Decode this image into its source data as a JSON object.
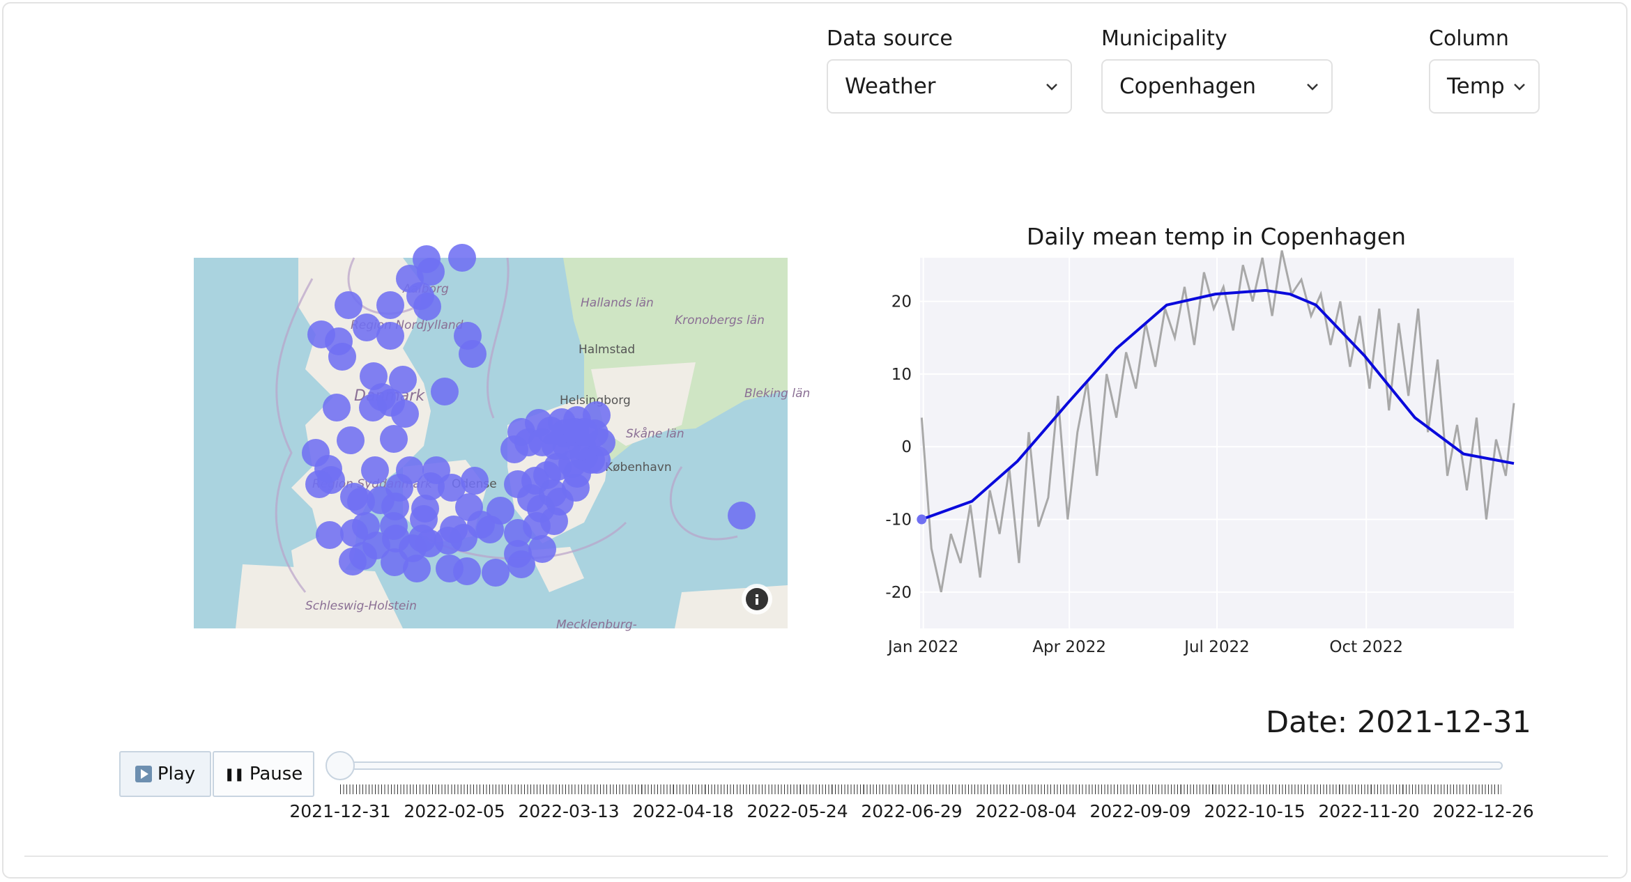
{
  "controls": {
    "data_source": {
      "label": "Data source",
      "value": "Weather"
    },
    "municipality": {
      "label": "Municipality",
      "value": "Copenhagen"
    },
    "column": {
      "label": "Column",
      "value": "Temp"
    }
  },
  "map": {
    "place_labels": [
      "Aalborg",
      "Region Nordjylland",
      "Danmark",
      "Hallands län",
      "Kronobergs län",
      "Halmstad",
      "Helsingborg",
      "Skåne län",
      "Bleking län",
      "København",
      "Odense",
      "Region Syddanmark",
      "Schleswig-Holstein",
      "Mecklenburg-"
    ],
    "marker_color": "#6f6ff2",
    "info_icon": "info-icon"
  },
  "chart_data": {
    "type": "line",
    "title": "Daily mean temp in Copenhagen",
    "xlabel": "",
    "ylabel": "",
    "x_tick_labels": [
      "Jan 2022",
      "Apr 2022",
      "Jul 2022",
      "Oct 2022"
    ],
    "y_ticks": [
      20,
      10,
      0,
      -10,
      -20
    ],
    "ylim": [
      -25,
      26
    ],
    "x_range": [
      "2021-12-30",
      "2022-12-31"
    ],
    "grid": true,
    "series": [
      {
        "color": "#a8a8a8",
        "x": [
          "2021-12-31",
          "2022-01-06",
          "2022-01-12",
          "2022-01-18",
          "2022-01-24",
          "2022-01-30",
          "2022-02-05",
          "2022-02-11",
          "2022-02-17",
          "2022-02-23",
          "2022-03-01",
          "2022-03-07",
          "2022-03-13",
          "2022-03-19",
          "2022-03-25",
          "2022-03-31",
          "2022-04-06",
          "2022-04-12",
          "2022-04-18",
          "2022-04-24",
          "2022-04-30",
          "2022-05-06",
          "2022-05-12",
          "2022-05-18",
          "2022-05-24",
          "2022-05-30",
          "2022-06-05",
          "2022-06-11",
          "2022-06-17",
          "2022-06-23",
          "2022-06-29",
          "2022-07-05",
          "2022-07-11",
          "2022-07-17",
          "2022-07-23",
          "2022-07-29",
          "2022-08-04",
          "2022-08-10",
          "2022-08-16",
          "2022-08-22",
          "2022-08-28",
          "2022-09-03",
          "2022-09-09",
          "2022-09-15",
          "2022-09-21",
          "2022-09-27",
          "2022-10-03",
          "2022-10-09",
          "2022-10-15",
          "2022-10-21",
          "2022-10-27",
          "2022-11-02",
          "2022-11-08",
          "2022-11-14",
          "2022-11-20",
          "2022-11-26",
          "2022-12-02",
          "2022-12-08",
          "2022-12-14",
          "2022-12-20",
          "2022-12-26",
          "2022-12-31"
        ],
        "values": [
          4,
          -14,
          -20,
          -12,
          -16,
          -8,
          -18,
          -6,
          -12,
          -3,
          -16,
          2,
          -11,
          -7,
          7,
          -10,
          2,
          9,
          -4,
          10,
          4,
          13,
          8,
          17,
          11,
          19,
          15,
          22,
          14,
          24,
          19,
          22,
          16,
          25,
          20,
          26,
          18,
          27,
          21,
          23,
          18,
          21,
          14,
          20,
          11,
          18,
          8,
          19,
          5,
          17,
          7,
          19,
          2,
          12,
          -4,
          3,
          -6,
          4,
          -10,
          1,
          -4,
          6
        ]
      },
      {
        "color": "#0a0adc",
        "x": [
          "2021-12-31",
          "2022-01-31",
          "2022-02-28",
          "2022-03-31",
          "2022-04-30",
          "2022-05-31",
          "2022-06-30",
          "2022-07-31",
          "2022-08-15",
          "2022-08-31",
          "2022-09-30",
          "2022-10-31",
          "2022-11-30",
          "2022-12-31"
        ],
        "values": [
          -10,
          -7.5,
          -2,
          6,
          13.5,
          19.5,
          21,
          21.5,
          21,
          19.5,
          12.5,
          4,
          -1,
          -2.3
        ]
      }
    ],
    "current_point": {
      "x": "2021-12-31",
      "y": -10
    }
  },
  "date_display": "Date: 2021-12-31",
  "player": {
    "play_label": "Play",
    "pause_label": "Pause",
    "play_icon": "play-icon",
    "pause_icon": "pause-icon"
  },
  "slider": {
    "value": "2021-12-31",
    "labels": [
      "2021-12-31",
      "2022-02-05",
      "2022-03-13",
      "2022-04-18",
      "2022-05-24",
      "2022-06-29",
      "2022-08-04",
      "2022-09-09",
      "2022-10-15",
      "2022-11-20",
      "2022-12-26"
    ]
  }
}
